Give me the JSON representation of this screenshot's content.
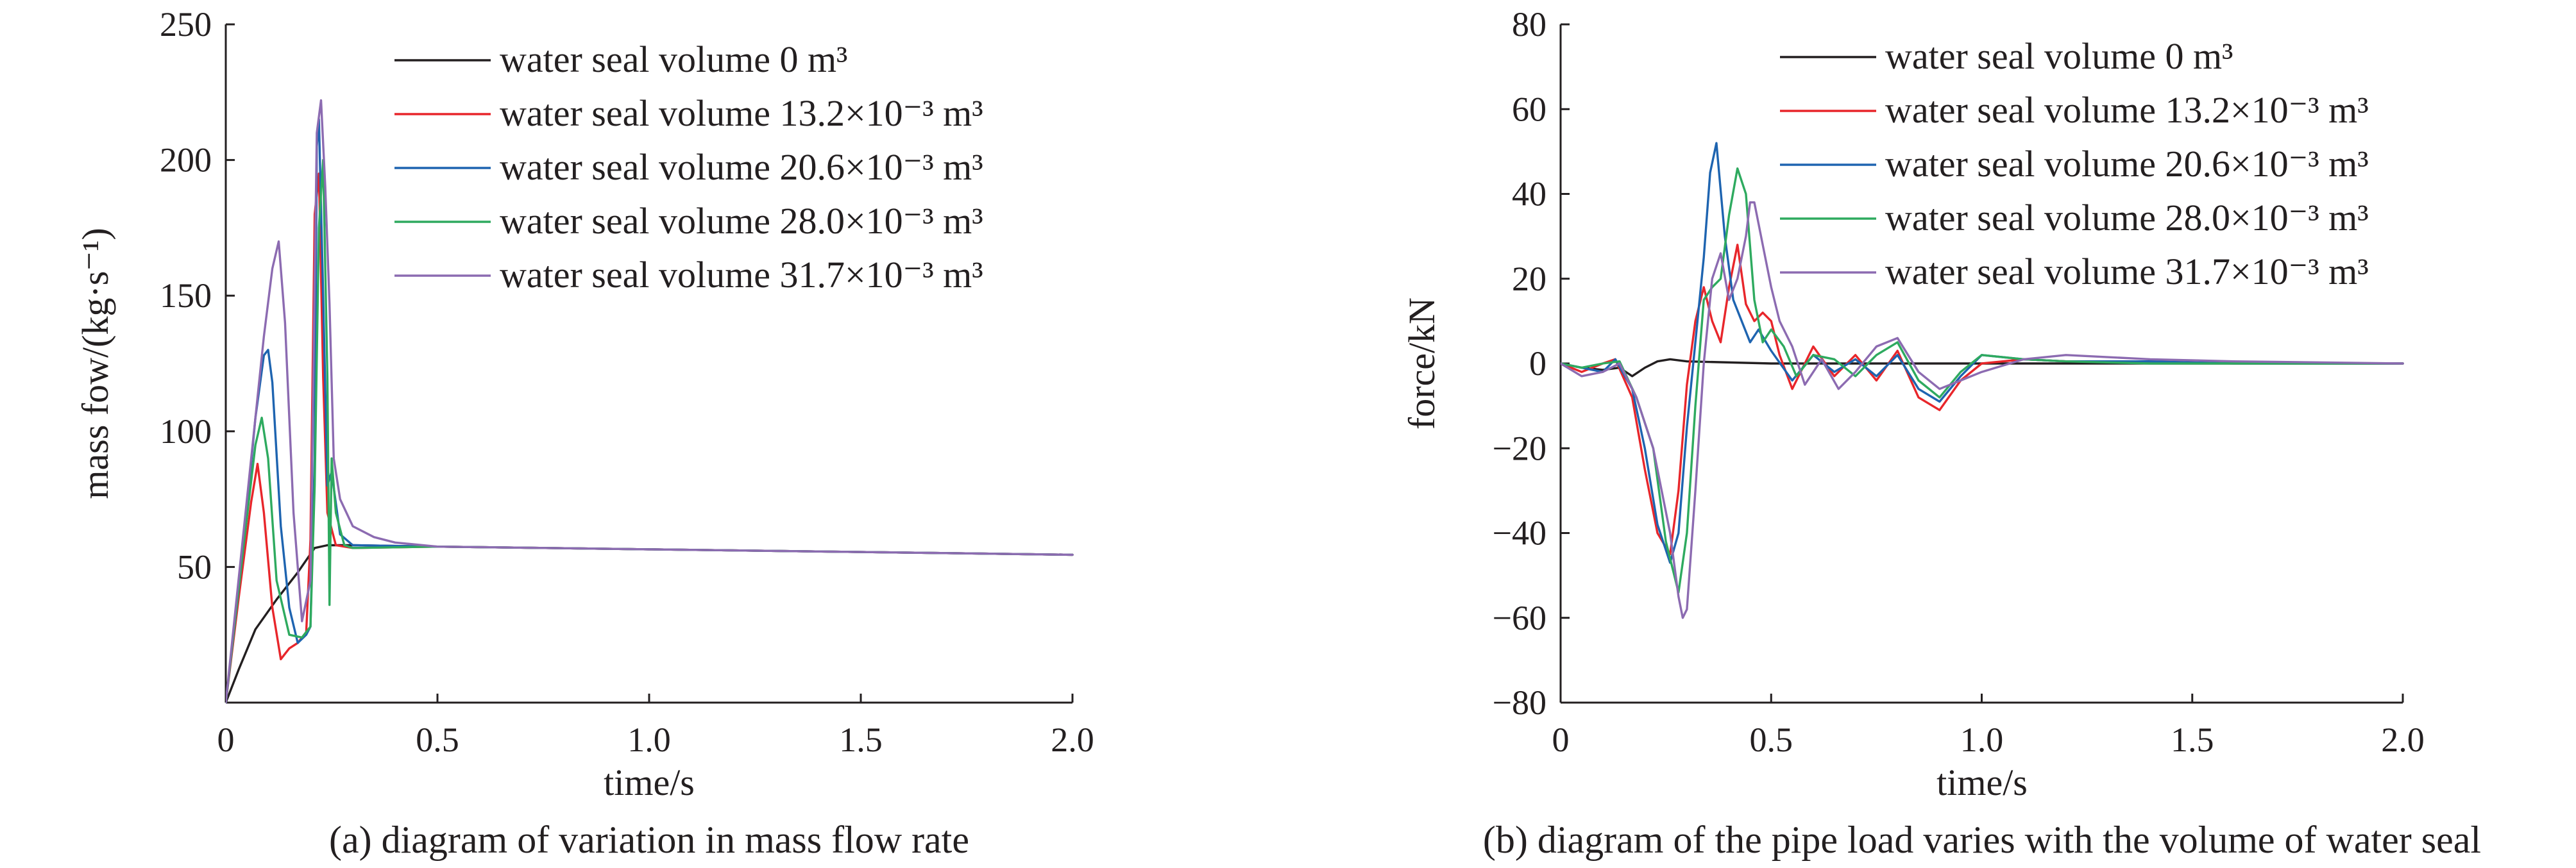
{
  "chart_data": [
    {
      "type": "line",
      "caption": "(a) diagram of variation in mass flow rate",
      "xlabel": "time/s",
      "ylabel": "mass fow/(kg·s⁻¹)",
      "xlim": [
        0,
        2.0
      ],
      "ylim": [
        0,
        250
      ],
      "xticks": [
        0,
        0.5,
        1.0,
        1.5,
        2.0
      ],
      "xtick_labels": [
        "0",
        "0.5",
        "1.0",
        "1.5",
        "2.0"
      ],
      "yticks": [
        50,
        100,
        150,
        200,
        250
      ],
      "ytick_labels": [
        "50",
        "100",
        "150",
        "200",
        "250"
      ],
      "grid": false,
      "legend_position": "top-right",
      "series": [
        {
          "name": "water seal volume 0 m³",
          "color": "#231f20",
          "x": [
            0,
            0.03,
            0.07,
            0.12,
            0.17,
            0.21,
            0.24,
            0.3,
            0.5,
            1.0,
            1.5,
            2.0
          ],
          "y": [
            0,
            12,
            27,
            38,
            48,
            57,
            58,
            58,
            57.5,
            56.5,
            55.5,
            54.5
          ]
        },
        {
          "name": "water seal volume 13.2×10⁻³ m³",
          "color": "#e8262b",
          "x": [
            0,
            0.03,
            0.06,
            0.075,
            0.09,
            0.11,
            0.13,
            0.15,
            0.17,
            0.19,
            0.2,
            0.21,
            0.22,
            0.23,
            0.24,
            0.26,
            0.3,
            0.5,
            1.0,
            1.5,
            2.0
          ],
          "y": [
            0,
            38,
            74,
            88,
            70,
            35,
            16,
            20,
            22,
            26,
            60,
            180,
            195,
            120,
            70,
            58,
            57,
            57.5,
            56.5,
            55.5,
            54.5
          ]
        },
        {
          "name": "water seal volume 20.6×10⁻³ m³",
          "color": "#1e64b0",
          "x": [
            0,
            0.04,
            0.07,
            0.09,
            0.1,
            0.11,
            0.13,
            0.15,
            0.17,
            0.19,
            0.2,
            0.21,
            0.215,
            0.22,
            0.23,
            0.24,
            0.25,
            0.27,
            0.3,
            0.5,
            1.0,
            1.5,
            2.0
          ],
          "y": [
            0,
            55,
            105,
            128,
            130,
            118,
            65,
            35,
            22,
            25,
            28,
            90,
            205,
            215,
            150,
            80,
            85,
            62,
            58,
            57.5,
            56.5,
            55.5,
            54.5
          ]
        },
        {
          "name": "water seal volume 28.0×10⁻³ m³",
          "color": "#2eaa5f",
          "x": [
            0,
            0.04,
            0.07,
            0.085,
            0.1,
            0.12,
            0.15,
            0.18,
            0.2,
            0.21,
            0.22,
            0.23,
            0.235,
            0.24,
            0.245,
            0.25,
            0.26,
            0.28,
            0.3,
            0.5,
            1.0,
            1.5,
            2.0
          ],
          "y": [
            0,
            55,
            95,
            105,
            90,
            45,
            25,
            24,
            28,
            80,
            175,
            200,
            160,
            120,
            36,
            90,
            70,
            58,
            57,
            57.5,
            56.5,
            55.5,
            54.5
          ]
        },
        {
          "name": "water seal volume 31.7×10⁻³ m³",
          "color": "#8c6bb1",
          "x": [
            0,
            0.04,
            0.07,
            0.09,
            0.11,
            0.125,
            0.14,
            0.16,
            0.18,
            0.2,
            0.215,
            0.225,
            0.235,
            0.245,
            0.255,
            0.27,
            0.3,
            0.35,
            0.4,
            0.5,
            1.0,
            1.5,
            2.0
          ],
          "y": [
            0,
            60,
            105,
            135,
            160,
            170,
            140,
            70,
            30,
            45,
            210,
            222,
            190,
            147,
            90,
            75,
            65,
            61,
            59,
            57.5,
            56.5,
            55.5,
            54.5
          ]
        }
      ]
    },
    {
      "type": "line",
      "caption": "(b) diagram of the pipe load varies with the volume of water seal",
      "xlabel": "time/s",
      "ylabel": "force/kN",
      "xlim": [
        0,
        2.0
      ],
      "ylim": [
        -80,
        80
      ],
      "xticks": [
        0,
        0.5,
        1.0,
        1.5,
        2.0
      ],
      "xtick_labels": [
        "0",
        "0.5",
        "1.0",
        "1.5",
        "2.0"
      ],
      "yticks": [
        -80,
        -60,
        -40,
        -20,
        0,
        20,
        40,
        60,
        80
      ],
      "ytick_labels": [
        "−80",
        "−60",
        "−40",
        "−20",
        "0",
        "20",
        "40",
        "60",
        "80"
      ],
      "grid": false,
      "legend_position": "top-right",
      "series": [
        {
          "name": "water seal volume 0 m³",
          "color": "#231f20",
          "x": [
            0,
            0.05,
            0.1,
            0.14,
            0.17,
            0.2,
            0.23,
            0.26,
            0.3,
            0.5,
            1.0,
            1.5,
            2.0
          ],
          "y": [
            0,
            -1,
            -1.5,
            -1,
            -3,
            -1,
            0.5,
            1,
            0.5,
            0,
            0,
            0,
            0
          ]
        },
        {
          "name": "water seal volume 13.2×10⁻³ m³",
          "color": "#e8262b",
          "x": [
            0,
            0.05,
            0.1,
            0.13,
            0.17,
            0.2,
            0.23,
            0.26,
            0.28,
            0.3,
            0.32,
            0.34,
            0.36,
            0.38,
            0.4,
            0.42,
            0.44,
            0.46,
            0.48,
            0.5,
            0.52,
            0.55,
            0.6,
            0.65,
            0.7,
            0.75,
            0.8,
            0.85,
            0.9,
            0.95,
            1.0,
            1.1,
            1.2,
            1.4,
            1.6,
            2.0
          ],
          "y": [
            0,
            -2,
            0,
            1,
            -8,
            -25,
            -40,
            -45,
            -30,
            -5,
            10,
            18,
            10,
            5,
            18,
            28,
            14,
            10,
            12,
            10,
            2,
            -6,
            4,
            -3,
            2,
            -4,
            3,
            -8,
            -11,
            -4,
            0,
            1,
            0.5,
            0.5,
            0,
            0
          ]
        },
        {
          "name": "water seal volume 20.6×10⁻³ m³",
          "color": "#1e64b0",
          "x": [
            0,
            0.05,
            0.1,
            0.13,
            0.17,
            0.2,
            0.23,
            0.26,
            0.28,
            0.3,
            0.32,
            0.34,
            0.355,
            0.37,
            0.39,
            0.41,
            0.43,
            0.45,
            0.47,
            0.5,
            0.55,
            0.6,
            0.65,
            0.7,
            0.75,
            0.8,
            0.85,
            0.9,
            0.95,
            1.0,
            1.1,
            1.2,
            1.4,
            1.6,
            2.0
          ],
          "y": [
            0,
            -1,
            -2,
            1,
            -6,
            -20,
            -38,
            -47,
            -40,
            -15,
            5,
            25,
            45,
            52,
            30,
            15,
            10,
            5,
            8,
            3,
            -4,
            2,
            -2,
            1,
            -3,
            2,
            -6,
            -9,
            -3,
            2,
            1,
            0.5,
            0.5,
            0,
            0
          ]
        },
        {
          "name": "water seal volume 28.0×10⁻³ m³",
          "color": "#2eaa5f",
          "x": [
            0,
            0.05,
            0.1,
            0.14,
            0.18,
            0.22,
            0.25,
            0.28,
            0.3,
            0.32,
            0.34,
            0.36,
            0.38,
            0.4,
            0.42,
            0.44,
            0.46,
            0.48,
            0.5,
            0.53,
            0.56,
            0.6,
            0.65,
            0.7,
            0.75,
            0.8,
            0.85,
            0.9,
            0.95,
            1.0,
            1.1,
            1.2,
            1.4,
            1.6,
            2.0
          ],
          "y": [
            0,
            -1,
            0,
            0.5,
            -8,
            -20,
            -42,
            -54,
            -40,
            -10,
            15,
            18,
            20,
            35,
            46,
            40,
            15,
            5,
            8,
            4,
            -3,
            2,
            1,
            -3,
            2,
            5,
            -4,
            -8,
            -2,
            2,
            1,
            0.5,
            0,
            0,
            0
          ]
        },
        {
          "name": "water seal volume 31.7×10⁻³ m³",
          "color": "#8c6bb1",
          "x": [
            0,
            0.05,
            0.1,
            0.14,
            0.18,
            0.22,
            0.26,
            0.28,
            0.29,
            0.3,
            0.32,
            0.34,
            0.36,
            0.38,
            0.4,
            0.42,
            0.44,
            0.45,
            0.46,
            0.48,
            0.5,
            0.52,
            0.55,
            0.58,
            0.62,
            0.66,
            0.7,
            0.75,
            0.8,
            0.85,
            0.9,
            0.95,
            1.0,
            1.1,
            1.2,
            1.4,
            1.6,
            2.0
          ],
          "y": [
            0,
            -3,
            -2,
            0,
            -8,
            -20,
            -40,
            -55,
            -60,
            -58,
            -30,
            0,
            20,
            26,
            15,
            20,
            30,
            38,
            38,
            28,
            18,
            10,
            4,
            -5,
            1,
            -6,
            -2,
            4,
            6,
            -2,
            -6,
            -4,
            -2,
            1,
            2,
            1,
            0.5,
            0
          ]
        }
      ]
    }
  ]
}
